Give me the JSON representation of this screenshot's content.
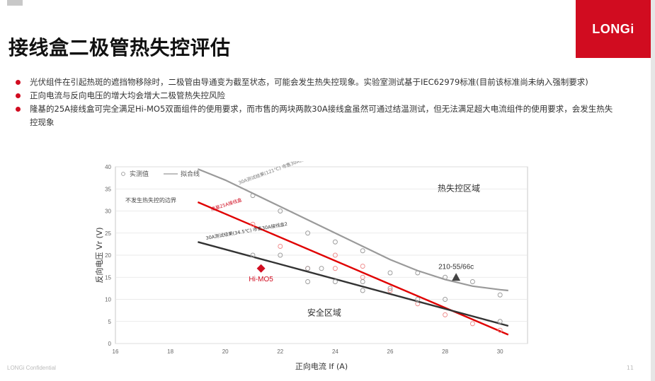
{
  "page": {
    "title": "接线盒二极管热失控评估",
    "logo_text": "LONGi",
    "footer": "LONGi Confidential",
    "page_number": "11",
    "bullets": [
      "光伏组件在引起热斑的遮挡物移除时，二极管由导通变为截至状态，可能会发生热失控现象。实验室测试基于IEC62979标准(目前该标准尚未纳入强制要求)",
      "正向电流与反向电压的增大均会增大二极管热失控风险",
      "隆基的25A接线盒可完全满足Hi-MO5双面组件的使用要求，而市售的两块两款30A接线盒虽然可通过结温测试，但无法满足超大电流组件的使用要求，会发生热失控现象"
    ]
  },
  "colors": {
    "brand_red": "#d10c20",
    "gray_curve": "#9a9a9a",
    "dark_line": "#333333",
    "red_line": "#e00000"
  },
  "chart_data": {
    "type": "scatter",
    "xlabel": "正向电流 If (A)",
    "ylabel": "反向电压 Vr (V)",
    "xlim": [
      16,
      31
    ],
    "ylim": [
      0,
      40
    ],
    "x_ticks": [
      "16",
      "18",
      "20",
      "22",
      "24",
      "26",
      "28",
      "30"
    ],
    "y_ticks": [
      "0",
      "5",
      "10",
      "15",
      "20",
      "25",
      "30",
      "35",
      "40"
    ],
    "legend": [
      "实测值",
      "拟合线"
    ],
    "regions": {
      "runaway": "热失控区域",
      "safe": "安全区域"
    },
    "boundary_label": "不发生热失控的边界",
    "series": [
      {
        "name": "市售30A接线盒1",
        "label": "30A测试结果(121℃) 市售30A接线盒1",
        "style": "gray",
        "line": [
          [
            19,
            39.5
          ],
          [
            20,
            37.0
          ],
          [
            21,
            34.0
          ],
          [
            22,
            31.0
          ],
          [
            23,
            28.0
          ],
          [
            24,
            25.0
          ],
          [
            25,
            22.0
          ],
          [
            26,
            19.0
          ],
          [
            27,
            16.5
          ],
          [
            28,
            14.5
          ],
          [
            29,
            13.0
          ],
          [
            30,
            12.2
          ],
          [
            30.3,
            12.0
          ]
        ],
        "points": [
          [
            21,
            33.5
          ],
          [
            22,
            30.0
          ],
          [
            23,
            25.0
          ],
          [
            24,
            23.0
          ],
          [
            25,
            21.0
          ],
          [
            26,
            16.0
          ],
          [
            27,
            16.0
          ],
          [
            28,
            15.0
          ],
          [
            29,
            14.0
          ],
          [
            30,
            11.0
          ]
        ]
      },
      {
        "name": "隆基25A接线盒",
        "label": "隆基25A接线盒",
        "style": "red",
        "line": [
          [
            19,
            32.0
          ],
          [
            30.3,
            2.0
          ]
        ],
        "points": [
          [
            21,
            27.0
          ],
          [
            22,
            22.0
          ],
          [
            23,
            17.0
          ],
          [
            24,
            20.0
          ],
          [
            24,
            17.0
          ],
          [
            25,
            17.5
          ],
          [
            25,
            15.0
          ],
          [
            26,
            12.0
          ],
          [
            27,
            9.0
          ],
          [
            28,
            6.5
          ],
          [
            29,
            4.5
          ],
          [
            30,
            3.0
          ]
        ]
      },
      {
        "name": "市售30A接线盒2",
        "label": "30A测试结果(34.5℃) 市售30A接线盒2",
        "style": "dark",
        "line": [
          [
            19,
            23.0
          ],
          [
            30.3,
            4.0
          ]
        ],
        "points": [
          [
            21,
            20.0
          ],
          [
            22,
            20.0
          ],
          [
            23,
            17.0
          ],
          [
            23,
            14.0
          ],
          [
            23.5,
            17.0
          ],
          [
            24,
            14.0
          ],
          [
            25,
            12.0
          ],
          [
            25,
            14.0
          ],
          [
            26,
            12.5
          ],
          [
            27,
            10.0
          ],
          [
            28,
            10.0
          ],
          [
            30,
            5.0
          ]
        ]
      }
    ],
    "annotations": [
      {
        "label": "Hi-MO5",
        "x": 21.3,
        "y": 17.0,
        "marker": "diamond",
        "color": "#d10c20"
      },
      {
        "label": "210-55/66c",
        "x": 28.4,
        "y": 15.0,
        "marker": "triangle",
        "color": "#444444"
      }
    ]
  }
}
